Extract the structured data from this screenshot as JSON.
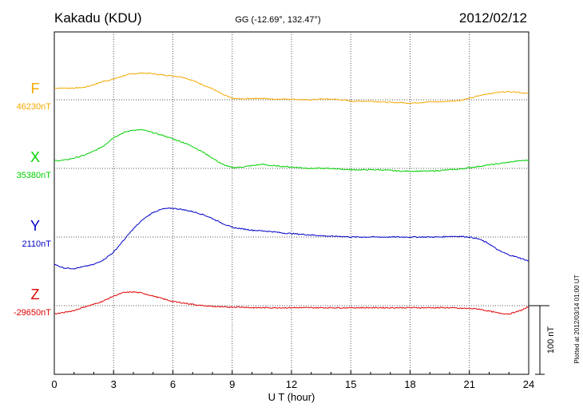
{
  "header": {
    "station": "Kakadu (KDU)",
    "coords": "GG (-12.69°, 132.47°)",
    "date": "2012/02/12"
  },
  "side_note": "Plotted at 2012/03/14 01:00 UT",
  "scale_label": "100 nT",
  "colors": {
    "F": "#f5a800",
    "X": "#00d000",
    "Y": "#0000c8",
    "Z": "#e00000"
  },
  "chart_data": {
    "type": "line",
    "xlabel": "U T (hour)",
    "xlim": [
      0,
      24
    ],
    "xticks": [
      0,
      3,
      6,
      9,
      12,
      15,
      18,
      21,
      24
    ],
    "xtick_labels": [
      "0",
      "3",
      "6",
      "9",
      "12",
      "15",
      "18",
      "21",
      "24"
    ],
    "grid": true,
    "scale_bar_nT": 100,
    "series": [
      {
        "name": "F",
        "baseline_label": "46230nT",
        "baseline_nT": 46230,
        "x": [
          0,
          1,
          1.5,
          2,
          2.5,
          3,
          3.5,
          4,
          4.5,
          5,
          5.5,
          6,
          6.5,
          7,
          7.5,
          8,
          8.5,
          9,
          9.5,
          10,
          10.5,
          11,
          11.5,
          12,
          12.5,
          13,
          13.5,
          14,
          14.5,
          15,
          15.5,
          16,
          16.5,
          17,
          17.5,
          18,
          18.5,
          19,
          19.5,
          20,
          20.5,
          21,
          21.5,
          22,
          22.5,
          23,
          23.5,
          24
        ],
        "values": [
          17,
          17,
          18,
          22,
          27,
          30,
          35,
          38,
          39,
          38,
          36,
          35,
          33,
          28,
          22,
          16,
          8,
          2,
          1,
          2,
          2,
          1,
          1,
          1,
          0,
          0,
          1,
          1,
          0,
          -2,
          -2,
          -2,
          -3,
          -4,
          -4,
          -5,
          -4,
          -3,
          -3,
          -2,
          -1,
          2,
          6,
          9,
          11,
          12,
          11,
          9
        ]
      },
      {
        "name": "X",
        "baseline_label": "35380nT",
        "baseline_nT": 35380,
        "x": [
          0,
          0.5,
          1,
          1.5,
          2,
          2.5,
          3,
          3.5,
          4,
          4.5,
          5,
          5.5,
          6,
          6.5,
          7,
          7.5,
          8,
          8.5,
          9,
          9.5,
          10,
          10.5,
          11,
          11.5,
          12,
          12.5,
          13,
          13.5,
          14,
          14.5,
          15,
          15.5,
          16,
          16.5,
          17,
          17.5,
          18,
          18.5,
          19,
          19.5,
          20,
          20.5,
          21,
          21.5,
          22,
          22.5,
          23,
          23.5,
          24
        ],
        "values": [
          11,
          12,
          15,
          19,
          25,
          33,
          45,
          52,
          56,
          56,
          52,
          48,
          43,
          38,
          32,
          24,
          15,
          6,
          1,
          2,
          4,
          6,
          4,
          3,
          2,
          1,
          0,
          0,
          0,
          -1,
          -2,
          -2,
          -2,
          -2,
          -3,
          -4,
          -4,
          -4,
          -4,
          -3,
          -2,
          -1,
          1,
          3,
          5,
          7,
          9,
          11,
          12
        ]
      },
      {
        "name": "Y",
        "baseline_label": "2110nT",
        "baseline_nT": 2110,
        "x": [
          0,
          0.5,
          1,
          1.5,
          2,
          2.5,
          3,
          3.5,
          4,
          4.5,
          5,
          5.5,
          6,
          6.5,
          7,
          7.5,
          8,
          8.5,
          9,
          9.5,
          10,
          10.5,
          11,
          11.5,
          12,
          12.5,
          13,
          13.5,
          14,
          14.5,
          15,
          15.5,
          16,
          16.5,
          17,
          17.5,
          18,
          18.5,
          19,
          19.5,
          20,
          20.5,
          21,
          21.5,
          22,
          22.5,
          23,
          23.5,
          24
        ],
        "values": [
          -40,
          -45,
          -46,
          -43,
          -40,
          -33,
          -22,
          -5,
          12,
          26,
          36,
          41,
          42,
          40,
          37,
          33,
          27,
          20,
          14,
          12,
          10,
          9,
          8,
          6,
          5,
          4,
          3,
          2,
          1,
          1,
          0,
          0,
          0,
          0,
          0,
          0,
          0,
          0,
          0,
          0,
          1,
          1,
          0,
          -3,
          -10,
          -20,
          -26,
          -30,
          -35
        ]
      },
      {
        "name": "Z",
        "baseline_label": "-29650nT",
        "baseline_nT": -29650,
        "x": [
          0,
          0.5,
          1,
          1.5,
          2,
          2.5,
          3,
          3.5,
          4,
          4.5,
          5,
          5.5,
          6,
          6.5,
          7,
          7.5,
          8,
          8.5,
          9,
          9.5,
          10,
          10.5,
          11,
          11.5,
          12,
          12.5,
          13,
          13.5,
          14,
          14.5,
          15,
          15.5,
          16,
          16.5,
          17,
          17.5,
          18,
          18.5,
          19,
          19.5,
          20,
          20.5,
          21,
          21.5,
          22,
          22.5,
          23,
          23.5,
          24
        ],
        "values": [
          -12,
          -10,
          -7,
          -2,
          2,
          7,
          14,
          19,
          20,
          18,
          14,
          10,
          6,
          4,
          2,
          0,
          -1,
          -2,
          -2,
          -2,
          -3,
          -3,
          -3,
          -3,
          -3,
          -3,
          -3,
          -3,
          -3,
          -3,
          -3,
          -3,
          -3,
          -3,
          -3,
          -3,
          -3,
          -3,
          -3,
          -3,
          -3,
          -4,
          -4,
          -5,
          -8,
          -11,
          -12,
          -8,
          -2
        ]
      }
    ]
  }
}
